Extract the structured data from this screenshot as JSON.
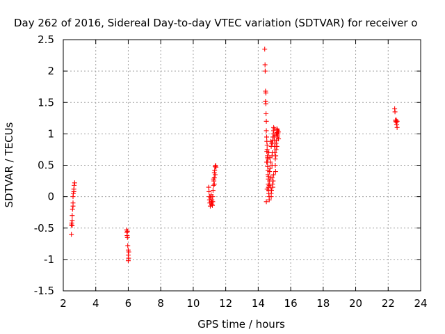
{
  "chart_data": {
    "type": "scatter",
    "title": "Day 262 of 2016, Sidereal Day-to-day VTEC variation (SDTVAR) for receiver o",
    "xlabel": "GPS time / hours",
    "ylabel": "SDTVAR / TECUs",
    "xlim": [
      2,
      24
    ],
    "ylim": [
      -1.5,
      2.5
    ],
    "xticks": [
      2,
      4,
      6,
      8,
      10,
      12,
      14,
      16,
      18,
      20,
      22,
      24
    ],
    "xtick_labels": [
      "2",
      "4",
      "6",
      "8",
      "10",
      "12",
      "14",
      "16",
      "18",
      "20",
      "22",
      "24"
    ],
    "yticks": [
      -1.5,
      -1,
      -0.5,
      0,
      0.5,
      1,
      1.5,
      2,
      2.5
    ],
    "ytick_labels": [
      "-1.5",
      "-1",
      "-0.5",
      "0",
      "0.5",
      "1",
      "1.5",
      "2",
      "2.5"
    ],
    "grid": true,
    "marker": "+",
    "color": "#ff0000",
    "series": [
      {
        "name": "SDTVAR",
        "points": [
          [
            2.5,
            -0.6
          ],
          [
            2.5,
            -0.45
          ],
          [
            2.52,
            -0.42
          ],
          [
            2.55,
            -0.38
          ],
          [
            2.55,
            -0.3
          ],
          [
            2.57,
            -0.2
          ],
          [
            2.6,
            -0.1
          ],
          [
            2.6,
            0.0
          ],
          [
            2.62,
            0.05
          ],
          [
            2.65,
            0.12
          ],
          [
            2.67,
            0.18
          ],
          [
            2.7,
            0.22
          ],
          [
            2.55,
            -0.46
          ],
          [
            2.6,
            -0.15
          ],
          [
            2.65,
            0.08
          ],
          [
            5.9,
            -0.53
          ],
          [
            5.92,
            -0.57
          ],
          [
            5.93,
            -0.62
          ],
          [
            5.95,
            -0.65
          ],
          [
            5.97,
            -0.78
          ],
          [
            6.0,
            -0.85
          ],
          [
            6.0,
            -0.93
          ],
          [
            6.02,
            -0.98
          ],
          [
            6.0,
            -1.02
          ],
          [
            5.95,
            -0.55
          ],
          [
            6.03,
            -0.88
          ],
          [
            10.95,
            0.15
          ],
          [
            10.97,
            0.08
          ],
          [
            11.0,
            0.0
          ],
          [
            11.0,
            -0.05
          ],
          [
            11.02,
            -0.1
          ],
          [
            11.05,
            -0.15
          ],
          [
            11.05,
            -0.02
          ],
          [
            11.1,
            -0.08
          ],
          [
            11.1,
            0.03
          ],
          [
            11.15,
            -0.05
          ],
          [
            11.15,
            -0.12
          ],
          [
            11.2,
            -0.08
          ],
          [
            11.2,
            0.0
          ],
          [
            11.22,
            0.1
          ],
          [
            11.25,
            0.18
          ],
          [
            11.27,
            0.25
          ],
          [
            11.3,
            0.3
          ],
          [
            11.3,
            0.38
          ],
          [
            11.32,
            0.42
          ],
          [
            11.35,
            0.48
          ],
          [
            11.38,
            0.5
          ],
          [
            11.3,
            0.2
          ],
          [
            11.25,
            0.28
          ],
          [
            11.35,
            0.35
          ],
          [
            11.4,
            0.47
          ],
          [
            11.12,
            -0.1
          ],
          [
            11.18,
            -0.14
          ],
          [
            14.4,
            2.35
          ],
          [
            14.42,
            2.1
          ],
          [
            14.43,
            2.0
          ],
          [
            14.45,
            1.68
          ],
          [
            14.47,
            1.65
          ],
          [
            14.45,
            1.52
          ],
          [
            14.47,
            1.48
          ],
          [
            14.48,
            1.32
          ],
          [
            14.5,
            1.2
          ],
          [
            14.5,
            1.05
          ],
          [
            14.52,
            0.95
          ],
          [
            14.53,
            0.88
          ],
          [
            14.55,
            0.82
          ],
          [
            14.55,
            0.75
          ],
          [
            14.57,
            0.65
          ],
          [
            14.57,
            0.55
          ],
          [
            14.58,
            0.48
          ],
          [
            14.6,
            0.42
          ],
          [
            14.6,
            0.35
          ],
          [
            14.62,
            0.28
          ],
          [
            14.62,
            0.2
          ],
          [
            14.63,
            0.15
          ],
          [
            14.65,
            0.1
          ],
          [
            14.65,
            0.05
          ],
          [
            14.67,
            0.0
          ],
          [
            14.68,
            -0.05
          ],
          [
            14.5,
            -0.08
          ],
          [
            14.55,
            0.12
          ],
          [
            14.6,
            0.6
          ],
          [
            14.65,
            0.7
          ],
          [
            14.7,
            0.25
          ],
          [
            14.7,
            0.4
          ],
          [
            14.72,
            0.62
          ],
          [
            14.75,
            0.55
          ],
          [
            14.75,
            0.3
          ],
          [
            14.77,
            0.15
          ],
          [
            14.8,
            0.05
          ],
          [
            14.8,
            0.0
          ],
          [
            14.82,
            0.1
          ],
          [
            14.85,
            0.3
          ],
          [
            14.85,
            0.5
          ],
          [
            14.87,
            0.7
          ],
          [
            14.88,
            0.85
          ],
          [
            14.9,
            0.9
          ],
          [
            14.9,
            0.95
          ],
          [
            14.92,
            1.0
          ],
          [
            14.95,
            1.05
          ],
          [
            14.95,
            1.1
          ],
          [
            14.97,
            0.95
          ],
          [
            15.0,
            0.9
          ],
          [
            15.0,
            0.8
          ],
          [
            15.02,
            0.7
          ],
          [
            15.05,
            0.6
          ],
          [
            15.05,
            0.5
          ],
          [
            15.07,
            0.4
          ],
          [
            15.1,
            0.75
          ],
          [
            15.1,
            0.85
          ],
          [
            15.12,
            1.0
          ],
          [
            15.15,
            1.08
          ],
          [
            15.15,
            1.02
          ],
          [
            15.18,
            0.98
          ],
          [
            15.2,
            1.05
          ],
          [
            15.2,
            0.95
          ],
          [
            15.22,
            1.0
          ],
          [
            15.25,
            1.03
          ],
          [
            15.25,
            0.92
          ],
          [
            14.95,
            0.35
          ],
          [
            14.92,
            0.25
          ],
          [
            14.9,
            0.15
          ],
          [
            14.88,
            0.2
          ],
          [
            14.85,
            0.65
          ],
          [
            14.8,
            0.8
          ],
          [
            14.78,
            0.88
          ],
          [
            14.83,
            0.85
          ],
          [
            15.08,
            0.65
          ],
          [
            15.13,
            0.9
          ],
          [
            15.03,
            0.98
          ],
          [
            14.98,
            1.08
          ],
          [
            15.15,
            0.8
          ],
          [
            15.17,
            1.07
          ],
          [
            14.73,
            0.45
          ],
          [
            14.68,
            0.18
          ],
          [
            14.63,
            0.32
          ],
          [
            14.58,
            0.62
          ],
          [
            14.53,
            0.72
          ],
          [
            14.52,
            0.55
          ],
          [
            22.4,
            1.4
          ],
          [
            22.42,
            1.35
          ],
          [
            22.45,
            1.22
          ],
          [
            22.47,
            1.2
          ],
          [
            22.5,
            1.18
          ],
          [
            22.5,
            1.22
          ],
          [
            22.52,
            1.15
          ],
          [
            22.55,
            1.2
          ],
          [
            22.55,
            1.1
          ]
        ]
      }
    ]
  }
}
